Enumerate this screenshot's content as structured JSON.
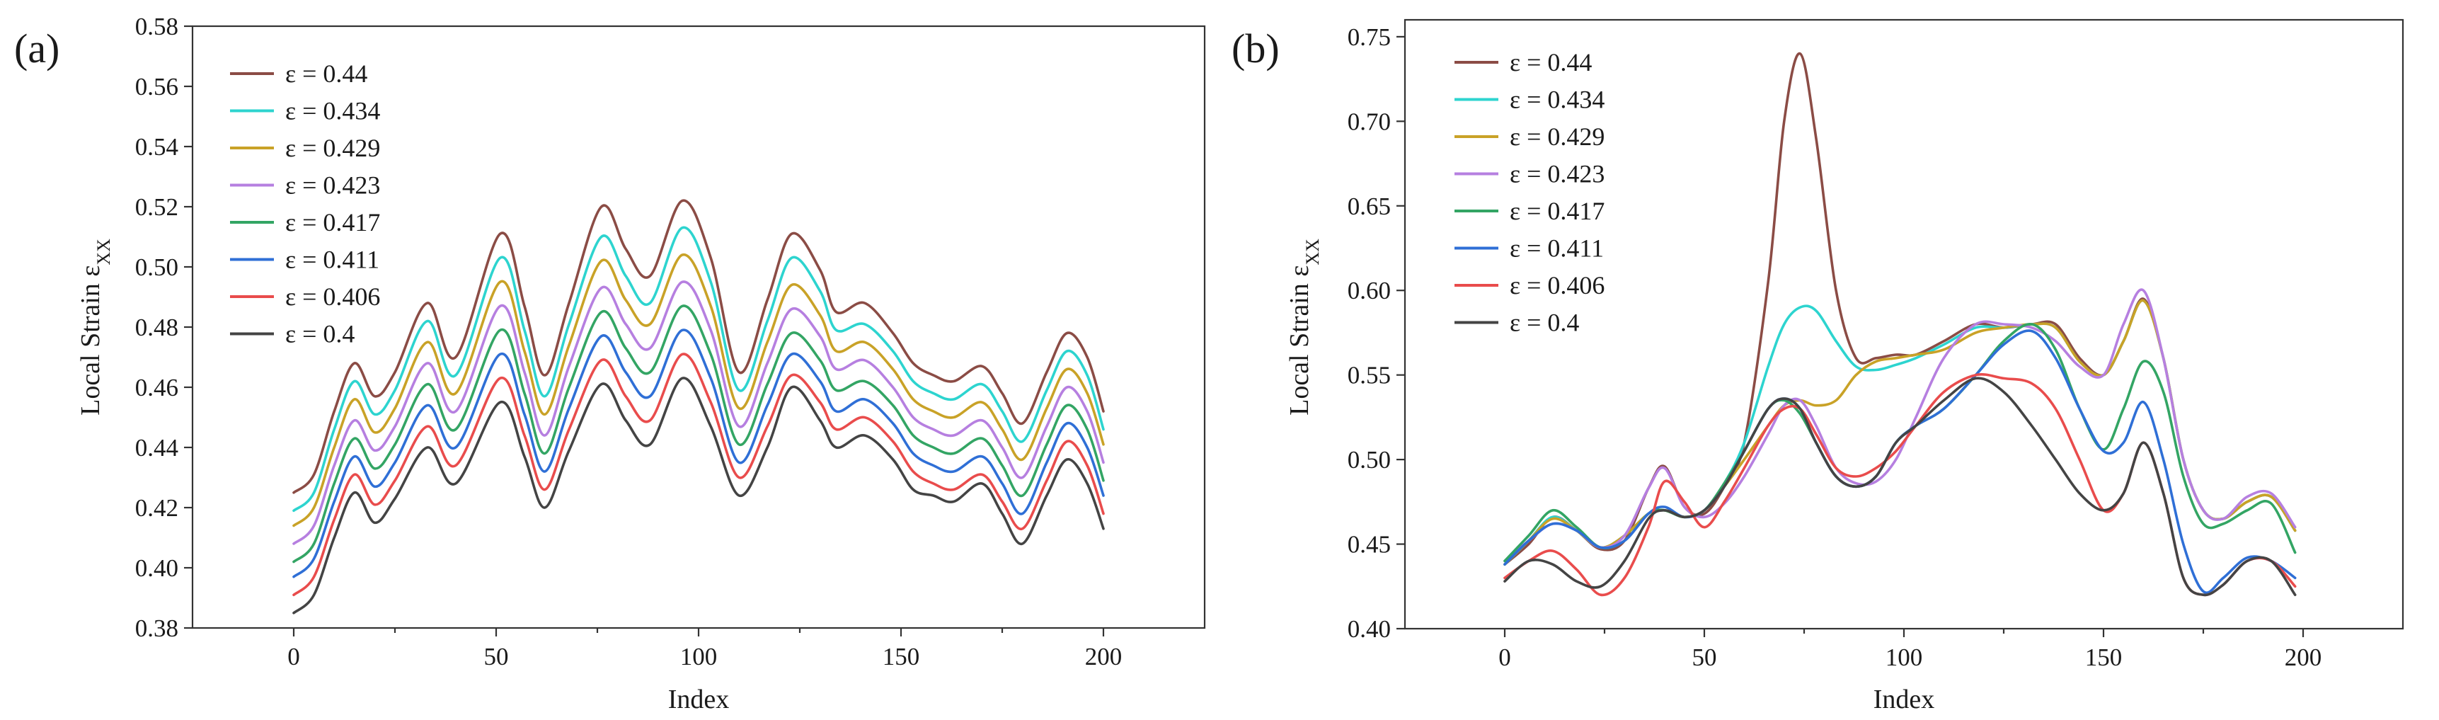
{
  "panels": [
    {
      "id": "a",
      "label": "(a)",
      "xlabel": "Index",
      "ylabel": "Local Strain ε",
      "ylabel_sub": "XX",
      "xlim": [
        -25,
        225
      ],
      "ylim": [
        0.38,
        0.58
      ],
      "xticks": [
        "0",
        "50",
        "100",
        "150",
        "200"
      ],
      "yticks": [
        "0.38",
        "0.40",
        "0.42",
        "0.44",
        "0.46",
        "0.48",
        "0.50",
        "0.52",
        "0.54",
        "0.56",
        "0.58"
      ],
      "legend": [
        "ε = 0.44",
        "ε = 0.434",
        "ε = 0.429",
        "ε = 0.423",
        "ε = 0.417",
        "ε = 0.411",
        "ε = 0.406",
        "ε = 0.4"
      ]
    },
    {
      "id": "b",
      "label": "(b)",
      "xlabel": "Index",
      "ylabel": "Local Strain ε",
      "ylabel_sub": "XX",
      "xlim": [
        -25,
        225
      ],
      "ylim": [
        0.4,
        0.76
      ],
      "xticks": [
        "0",
        "50",
        "100",
        "150",
        "200"
      ],
      "yticks": [
        "0.40",
        "0.45",
        "0.50",
        "0.55",
        "0.60",
        "0.65",
        "0.70",
        "0.75"
      ],
      "legend": [
        "ε = 0.44",
        "ε = 0.434",
        "ε = 0.429",
        "ε = 0.423",
        "ε = 0.417",
        "ε = 0.411",
        "ε = 0.406",
        "ε = 0.4"
      ]
    }
  ],
  "chart_data": [
    {
      "type": "line",
      "title": "(a)",
      "xlabel": "Index",
      "ylabel": "Local Strain εXX",
      "xlim": [
        -25,
        225
      ],
      "ylim": [
        0.38,
        0.58
      ],
      "x": [
        0,
        5,
        10,
        15,
        20,
        25,
        33,
        40,
        51,
        57,
        62,
        68,
        76,
        82,
        88,
        96,
        103,
        110,
        117,
        123,
        130,
        134,
        141,
        148,
        153,
        158,
        163,
        170,
        175,
        180,
        186,
        191,
        196,
        200
      ],
      "series": [
        {
          "name": "ε = 0.44",
          "color": "#8b4c45",
          "values": [
            0.425,
            0.431,
            0.452,
            0.468,
            0.457,
            0.465,
            0.488,
            0.47,
            0.511,
            0.487,
            0.464,
            0.488,
            0.52,
            0.506,
            0.497,
            0.522,
            0.503,
            0.465,
            0.489,
            0.511,
            0.499,
            0.485,
            0.488,
            0.478,
            0.468,
            0.464,
            0.462,
            0.467,
            0.458,
            0.448,
            0.465,
            0.478,
            0.47,
            0.452
          ]
        },
        {
          "name": "ε = 0.434",
          "color": "#2dd4cf",
          "values": [
            0.419,
            0.425,
            0.446,
            0.462,
            0.451,
            0.459,
            0.482,
            0.464,
            0.503,
            0.479,
            0.457,
            0.481,
            0.51,
            0.497,
            0.488,
            0.513,
            0.495,
            0.459,
            0.482,
            0.503,
            0.492,
            0.479,
            0.481,
            0.472,
            0.462,
            0.458,
            0.456,
            0.461,
            0.452,
            0.442,
            0.459,
            0.472,
            0.464,
            0.446
          ]
        },
        {
          "name": "ε = 0.429",
          "color": "#c9a227",
          "values": [
            0.414,
            0.42,
            0.44,
            0.456,
            0.445,
            0.453,
            0.475,
            0.458,
            0.495,
            0.472,
            0.451,
            0.474,
            0.502,
            0.489,
            0.481,
            0.504,
            0.487,
            0.453,
            0.475,
            0.494,
            0.484,
            0.472,
            0.475,
            0.466,
            0.456,
            0.452,
            0.45,
            0.455,
            0.446,
            0.436,
            0.453,
            0.466,
            0.458,
            0.441
          ]
        },
        {
          "name": "ε = 0.423",
          "color": "#b67fe0",
          "values": [
            0.408,
            0.414,
            0.434,
            0.449,
            0.439,
            0.447,
            0.468,
            0.452,
            0.487,
            0.465,
            0.444,
            0.467,
            0.493,
            0.481,
            0.473,
            0.495,
            0.479,
            0.447,
            0.468,
            0.486,
            0.477,
            0.466,
            0.469,
            0.46,
            0.45,
            0.446,
            0.444,
            0.449,
            0.44,
            0.43,
            0.447,
            0.46,
            0.452,
            0.435
          ]
        },
        {
          "name": "ε = 0.417",
          "color": "#33a564",
          "values": [
            0.402,
            0.408,
            0.428,
            0.443,
            0.433,
            0.441,
            0.461,
            0.446,
            0.479,
            0.458,
            0.438,
            0.46,
            0.485,
            0.473,
            0.465,
            0.487,
            0.471,
            0.441,
            0.461,
            0.478,
            0.469,
            0.459,
            0.462,
            0.454,
            0.444,
            0.44,
            0.438,
            0.443,
            0.434,
            0.424,
            0.441,
            0.454,
            0.446,
            0.429
          ]
        },
        {
          "name": "ε = 0.411",
          "color": "#2f6fd6",
          "values": [
            0.397,
            0.403,
            0.422,
            0.437,
            0.427,
            0.435,
            0.454,
            0.44,
            0.471,
            0.451,
            0.432,
            0.453,
            0.477,
            0.465,
            0.457,
            0.479,
            0.463,
            0.435,
            0.454,
            0.471,
            0.462,
            0.452,
            0.456,
            0.448,
            0.438,
            0.434,
            0.432,
            0.437,
            0.428,
            0.418,
            0.435,
            0.448,
            0.44,
            0.424
          ]
        },
        {
          "name": "ε = 0.406",
          "color": "#e94c4c",
          "values": [
            0.391,
            0.397,
            0.416,
            0.431,
            0.421,
            0.429,
            0.447,
            0.434,
            0.463,
            0.444,
            0.426,
            0.446,
            0.469,
            0.457,
            0.449,
            0.471,
            0.455,
            0.43,
            0.447,
            0.464,
            0.455,
            0.446,
            0.45,
            0.442,
            0.432,
            0.428,
            0.426,
            0.431,
            0.422,
            0.413,
            0.429,
            0.442,
            0.434,
            0.418
          ]
        },
        {
          "name": "ε = 0.4",
          "color": "#444444",
          "values": [
            0.385,
            0.391,
            0.41,
            0.425,
            0.415,
            0.423,
            0.44,
            0.428,
            0.455,
            0.437,
            0.42,
            0.439,
            0.461,
            0.449,
            0.441,
            0.463,
            0.447,
            0.424,
            0.44,
            0.46,
            0.449,
            0.44,
            0.444,
            0.436,
            0.426,
            0.424,
            0.422,
            0.428,
            0.418,
            0.408,
            0.424,
            0.436,
            0.428,
            0.413
          ]
        }
      ]
    },
    {
      "type": "line",
      "title": "(b)",
      "xlabel": "Index",
      "ylabel": "Local Strain εXX",
      "xlim": [
        -25,
        225
      ],
      "ylim": [
        0.4,
        0.76
      ],
      "x": [
        0,
        6,
        12,
        18,
        24,
        30,
        36,
        40,
        45,
        50,
        55,
        60,
        66,
        70,
        74,
        78,
        83,
        88,
        93,
        98,
        103,
        110,
        118,
        125,
        132,
        138,
        144,
        150,
        155,
        160,
        165,
        170,
        175,
        180,
        186,
        192,
        198
      ],
      "series": [
        {
          "name": "ε = 0.44",
          "color": "#8b4c45",
          "values": [
            0.438,
            0.45,
            0.466,
            0.458,
            0.447,
            0.452,
            0.483,
            0.496,
            0.472,
            0.468,
            0.484,
            0.51,
            0.605,
            0.7,
            0.74,
            0.69,
            0.6,
            0.56,
            0.56,
            0.562,
            0.562,
            0.57,
            0.58,
            0.578,
            0.58,
            0.58,
            0.56,
            0.55,
            0.57,
            0.595,
            0.56,
            0.5,
            0.47,
            0.465,
            0.475,
            0.478,
            0.458
          ]
        },
        {
          "name": "ε = 0.434",
          "color": "#2dd4cf",
          "values": [
            0.438,
            0.452,
            0.466,
            0.458,
            0.448,
            0.455,
            0.468,
            0.47,
            0.466,
            0.47,
            0.486,
            0.51,
            0.555,
            0.58,
            0.59,
            0.588,
            0.57,
            0.555,
            0.553,
            0.556,
            0.56,
            0.568,
            0.578,
            0.578,
            0.58,
            0.578,
            0.558,
            0.55,
            0.57,
            0.594,
            0.56,
            0.5,
            0.47,
            0.465,
            0.475,
            0.478,
            0.458
          ]
        },
        {
          "name": "ε = 0.429",
          "color": "#c9a227",
          "values": [
            0.438,
            0.452,
            0.465,
            0.458,
            0.448,
            0.455,
            0.468,
            0.47,
            0.466,
            0.47,
            0.484,
            0.5,
            0.52,
            0.532,
            0.535,
            0.532,
            0.535,
            0.55,
            0.558,
            0.56,
            0.562,
            0.565,
            0.575,
            0.578,
            0.58,
            0.578,
            0.558,
            0.55,
            0.57,
            0.594,
            0.56,
            0.5,
            0.47,
            0.465,
            0.475,
            0.478,
            0.458
          ]
        },
        {
          "name": "ε = 0.423",
          "color": "#b67fe0",
          "values": [
            0.44,
            0.452,
            0.462,
            0.458,
            0.448,
            0.455,
            0.483,
            0.495,
            0.472,
            0.466,
            0.474,
            0.49,
            0.515,
            0.532,
            0.535,
            0.52,
            0.495,
            0.486,
            0.487,
            0.5,
            0.525,
            0.56,
            0.58,
            0.58,
            0.578,
            0.57,
            0.555,
            0.55,
            0.58,
            0.6,
            0.56,
            0.5,
            0.47,
            0.465,
            0.478,
            0.48,
            0.46
          ]
        },
        {
          "name": "ε = 0.417",
          "color": "#33a564",
          "values": [
            0.44,
            0.455,
            0.47,
            0.46,
            0.448,
            0.452,
            0.468,
            0.47,
            0.466,
            0.47,
            0.486,
            0.505,
            0.53,
            0.535,
            0.527,
            0.51,
            0.49,
            0.484,
            0.49,
            0.51,
            0.52,
            0.53,
            0.55,
            0.57,
            0.58,
            0.565,
            0.53,
            0.506,
            0.53,
            0.558,
            0.54,
            0.49,
            0.462,
            0.462,
            0.47,
            0.474,
            0.445
          ]
        },
        {
          "name": "ε = 0.411",
          "color": "#2f6fd6",
          "values": [
            0.438,
            0.452,
            0.462,
            0.458,
            0.448,
            0.452,
            0.468,
            0.472,
            0.466,
            0.47,
            0.484,
            0.505,
            0.53,
            0.536,
            0.53,
            0.51,
            0.49,
            0.484,
            0.49,
            0.51,
            0.52,
            0.53,
            0.55,
            0.568,
            0.576,
            0.56,
            0.53,
            0.505,
            0.51,
            0.534,
            0.5,
            0.45,
            0.422,
            0.43,
            0.442,
            0.44,
            0.43
          ]
        },
        {
          "name": "ε = 0.406",
          "color": "#e94c4c",
          "values": [
            0.43,
            0.44,
            0.446,
            0.435,
            0.42,
            0.43,
            0.46,
            0.487,
            0.475,
            0.46,
            0.475,
            0.495,
            0.52,
            0.53,
            0.53,
            0.515,
            0.495,
            0.49,
            0.495,
            0.505,
            0.52,
            0.54,
            0.55,
            0.548,
            0.545,
            0.53,
            0.5,
            0.47,
            0.48,
            0.51,
            0.48,
            0.43,
            0.42,
            0.426,
            0.44,
            0.44,
            0.425
          ]
        },
        {
          "name": "ε = 0.4",
          "color": "#444444",
          "values": [
            0.428,
            0.44,
            0.438,
            0.428,
            0.425,
            0.44,
            0.465,
            0.47,
            0.466,
            0.47,
            0.484,
            0.505,
            0.53,
            0.536,
            0.53,
            0.51,
            0.49,
            0.484,
            0.49,
            0.51,
            0.52,
            0.535,
            0.548,
            0.54,
            0.52,
            0.5,
            0.48,
            0.47,
            0.48,
            0.51,
            0.48,
            0.43,
            0.42,
            0.426,
            0.44,
            0.44,
            0.42
          ]
        }
      ]
    }
  ]
}
